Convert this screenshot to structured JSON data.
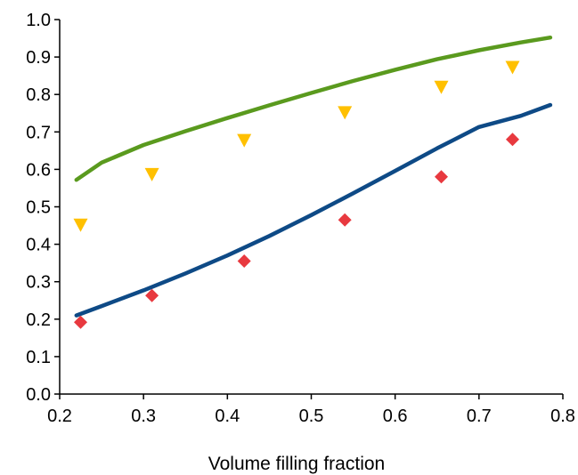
{
  "chart_data": {
    "type": "scatter",
    "title": "",
    "xlabel": "Volume filling fraction",
    "ylabel": "",
    "xlim": [
      0.2,
      0.8
    ],
    "ylim": [
      0.0,
      1.0
    ],
    "xticks": [
      "0.2",
      "0.3",
      "0.4",
      "0.5",
      "0.6",
      "0.7",
      "0.8"
    ],
    "yticks": [
      "0.0",
      "0.1",
      "0.2",
      "0.3",
      "0.4",
      "0.5",
      "0.6",
      "0.7",
      "0.8",
      "0.9",
      "1.0"
    ],
    "grid": false,
    "legend": "none",
    "series": [
      {
        "kind": "line",
        "color": "#5a9a1e",
        "x": [
          0.22,
          0.25,
          0.3,
          0.35,
          0.4,
          0.45,
          0.5,
          0.55,
          0.6,
          0.65,
          0.7,
          0.75,
          0.785
        ],
        "y": [
          0.572,
          0.618,
          0.665,
          0.702,
          0.737,
          0.771,
          0.804,
          0.836,
          0.866,
          0.894,
          0.918,
          0.939,
          0.952
        ]
      },
      {
        "kind": "line",
        "color": "#0e4a86",
        "x": [
          0.22,
          0.25,
          0.3,
          0.35,
          0.4,
          0.45,
          0.5,
          0.55,
          0.6,
          0.65,
          0.7,
          0.75,
          0.785
        ],
        "y": [
          0.21,
          0.235,
          0.277,
          0.322,
          0.37,
          0.422,
          0.478,
          0.536,
          0.596,
          0.656,
          0.713,
          0.743,
          0.772
        ]
      },
      {
        "kind": "marker",
        "marker": "triangle-down",
        "color": "#ffc000",
        "x": [
          0.225,
          0.31,
          0.42,
          0.54,
          0.655,
          0.74
        ],
        "y": [
          0.452,
          0.587,
          0.678,
          0.752,
          0.82,
          0.873
        ]
      },
      {
        "kind": "marker",
        "marker": "diamond",
        "color": "#e8393f",
        "x": [
          0.225,
          0.31,
          0.42,
          0.54,
          0.655,
          0.74
        ],
        "y": [
          0.192,
          0.263,
          0.355,
          0.465,
          0.58,
          0.68
        ]
      }
    ]
  }
}
